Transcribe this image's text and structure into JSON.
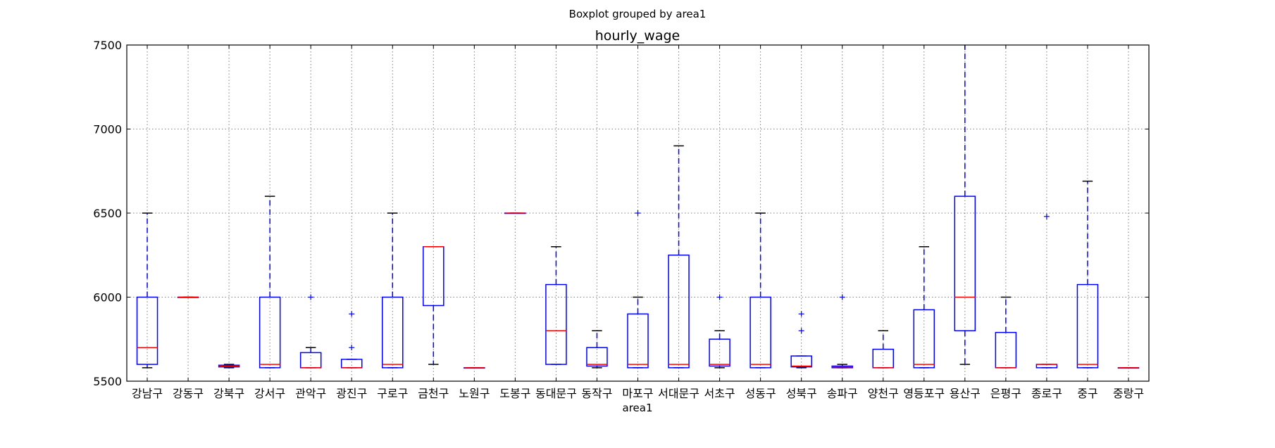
{
  "chart_data": {
    "type": "boxplot",
    "suptitle": "Boxplot grouped by area1",
    "title": "hourly_wage",
    "xlabel": "area1",
    "ylabel": "",
    "ylim": [
      5500,
      7500
    ],
    "yticks": [
      5500,
      6000,
      6500,
      7000,
      7500
    ],
    "grid": true,
    "categories": [
      "강남구",
      "강동구",
      "강북구",
      "강서구",
      "관악구",
      "광진구",
      "구로구",
      "금천구",
      "노원구",
      "도봉구",
      "동대문구",
      "동작구",
      "마포구",
      "서대문구",
      "서초구",
      "성동구",
      "성북구",
      "송파구",
      "양천구",
      "영등포구",
      "용산구",
      "은평구",
      "종로구",
      "중구",
      "중랑구"
    ],
    "boxes": [
      {
        "whislo": 5580,
        "q1": 5600,
        "med": 5700,
        "q3": 6000,
        "whishi": 6500,
        "fliers": []
      },
      {
        "whislo": 6000,
        "q1": 6000,
        "med": 6000,
        "q3": 6000,
        "whishi": 6000,
        "fliers": []
      },
      {
        "whislo": 5580,
        "q1": 5585,
        "med": 5590,
        "q3": 5595,
        "whishi": 5600,
        "fliers": []
      },
      {
        "whislo": 5580,
        "q1": 5580,
        "med": 5600,
        "q3": 6000,
        "whishi": 6600,
        "fliers": []
      },
      {
        "whislo": 5580,
        "q1": 5580,
        "med": 5580,
        "q3": 5670,
        "whishi": 5700,
        "fliers": [
          6000
        ]
      },
      {
        "whislo": 5580,
        "q1": 5580,
        "med": 5580,
        "q3": 5630,
        "whishi": 5630,
        "fliers": [
          5700,
          5900
        ]
      },
      {
        "whislo": 5580,
        "q1": 5580,
        "med": 5600,
        "q3": 6000,
        "whishi": 6500,
        "fliers": []
      },
      {
        "whislo": 5600,
        "q1": 5950,
        "med": 6300,
        "q3": 6300,
        "whishi": 6300,
        "fliers": []
      },
      {
        "whislo": 5580,
        "q1": 5580,
        "med": 5580,
        "q3": 5580,
        "whishi": 5580,
        "fliers": []
      },
      {
        "whislo": 6500,
        "q1": 6500,
        "med": 6500,
        "q3": 6500,
        "whishi": 6500,
        "fliers": []
      },
      {
        "whislo": 5600,
        "q1": 5600,
        "med": 5800,
        "q3": 6075,
        "whishi": 6300,
        "fliers": []
      },
      {
        "whislo": 5580,
        "q1": 5590,
        "med": 5600,
        "q3": 5700,
        "whishi": 5800,
        "fliers": []
      },
      {
        "whislo": 5580,
        "q1": 5580,
        "med": 5600,
        "q3": 5900,
        "whishi": 6000,
        "fliers": [
          6500
        ]
      },
      {
        "whislo": 5580,
        "q1": 5580,
        "med": 5600,
        "q3": 6250,
        "whishi": 6900,
        "fliers": []
      },
      {
        "whislo": 5580,
        "q1": 5590,
        "med": 5600,
        "q3": 5750,
        "whishi": 5800,
        "fliers": [
          6000
        ]
      },
      {
        "whislo": 5580,
        "q1": 5580,
        "med": 5600,
        "q3": 6000,
        "whishi": 6500,
        "fliers": []
      },
      {
        "whislo": 5580,
        "q1": 5585,
        "med": 5590,
        "q3": 5650,
        "whishi": 5650,
        "fliers": [
          5800,
          5900
        ]
      },
      {
        "whislo": 5580,
        "q1": 5580,
        "med": 5585,
        "q3": 5590,
        "whishi": 5600,
        "fliers": [
          6000
        ]
      },
      {
        "whislo": 5580,
        "q1": 5580,
        "med": 5580,
        "q3": 5690,
        "whishi": 5800,
        "fliers": []
      },
      {
        "whislo": 5580,
        "q1": 5580,
        "med": 5600,
        "q3": 5925,
        "whishi": 6300,
        "fliers": []
      },
      {
        "whislo": 5600,
        "q1": 5800,
        "med": 6000,
        "q3": 6600,
        "whishi": 7600,
        "fliers": []
      },
      {
        "whislo": 5580,
        "q1": 5580,
        "med": 5580,
        "q3": 5790,
        "whishi": 6000,
        "fliers": []
      },
      {
        "whislo": 5580,
        "q1": 5580,
        "med": 5600,
        "q3": 5600,
        "whishi": 5600,
        "fliers": [
          6480
        ]
      },
      {
        "whislo": 5580,
        "q1": 5580,
        "med": 5600,
        "q3": 6075,
        "whishi": 6690,
        "fliers": []
      },
      {
        "whislo": 5580,
        "q1": 5580,
        "med": 5580,
        "q3": 5580,
        "whishi": 5580,
        "fliers": []
      }
    ],
    "colors": {
      "box": "#0000ff",
      "median": "#ff0000",
      "cap": "#000000",
      "grid": "#808080"
    }
  }
}
